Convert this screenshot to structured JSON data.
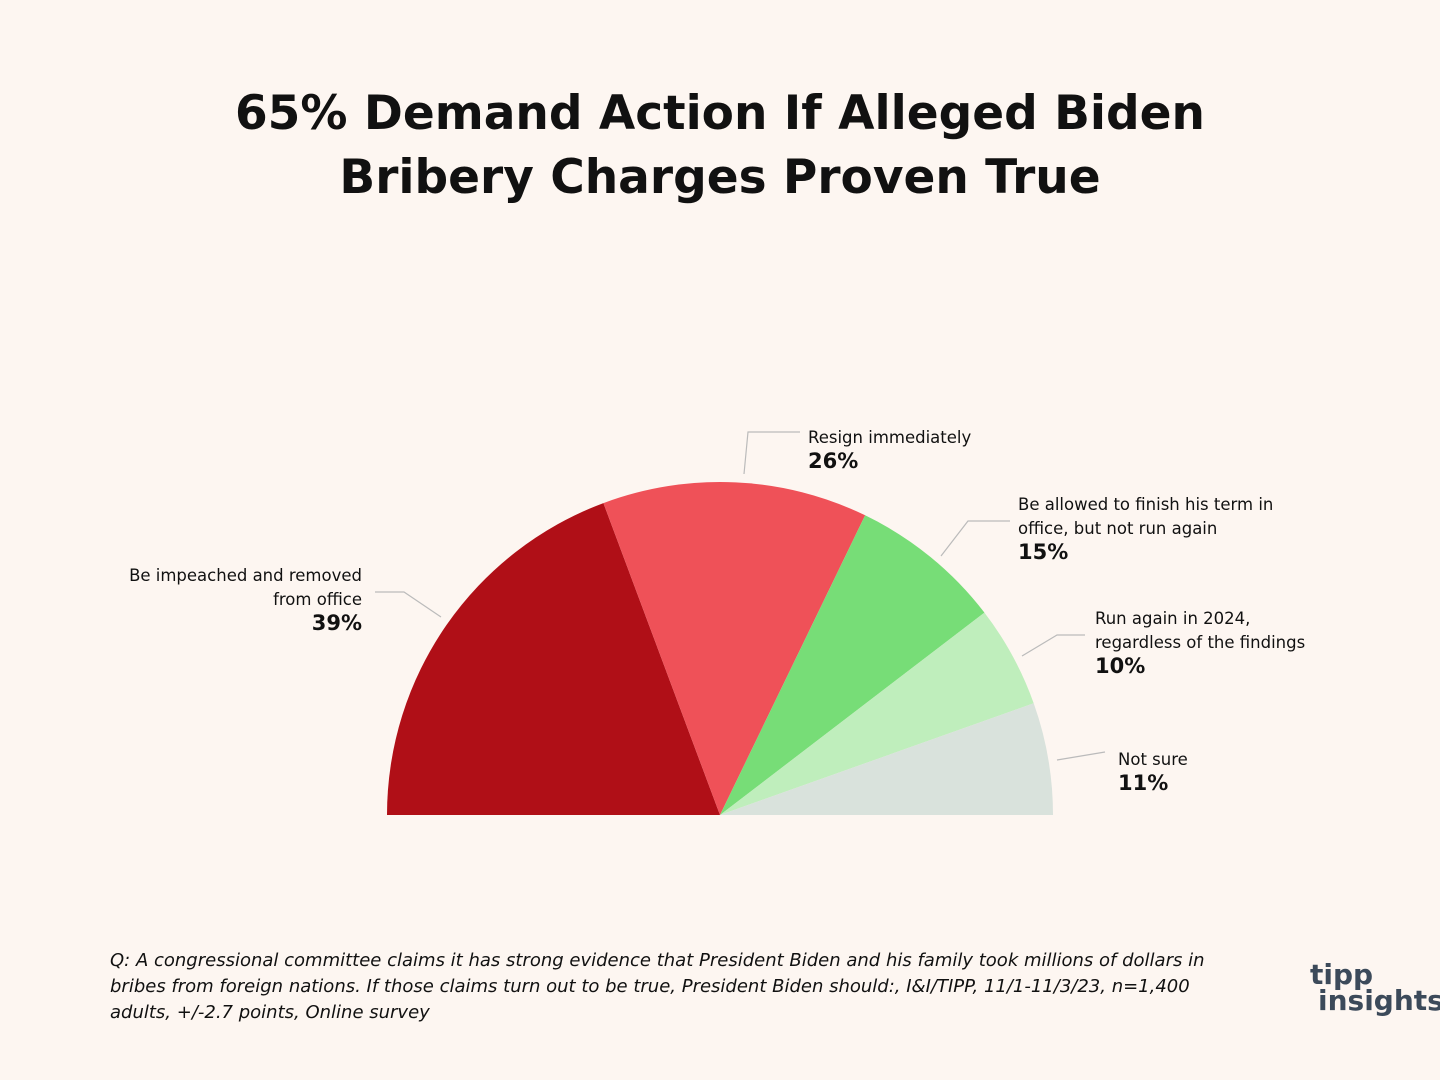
{
  "chart_data": {
    "type": "half-pie",
    "title": "65% Demand Action If Alleged Biden Bribery Charges Proven True",
    "categories": [
      "Be impeached and removed from office",
      "Resign immediately",
      "Be allowed to finish his term in office, but not run again",
      "Run again in 2024, regardless of the findings",
      "Not sure"
    ],
    "values": [
      39,
      26,
      15,
      10,
      11
    ],
    "value_labels": [
      "39%",
      "26%",
      "15%",
      "10%",
      "11%"
    ],
    "colors": [
      "#b00f17",
      "#ef5158",
      "#77dd77",
      "#bfeebc",
      "#d9e2dc"
    ]
  },
  "footnote": "Q: A congressional committee claims it has strong evidence that President Biden and his family took millions of dollars in bribes from foreign nations. If those claims turn out to be true, President Biden should:, I&I/TIPP, 11/1-11/3/23, n=1,400 adults, +/-2.7 points,  Online survey",
  "logo": {
    "line1": "tipp",
    "line2": "insights"
  }
}
